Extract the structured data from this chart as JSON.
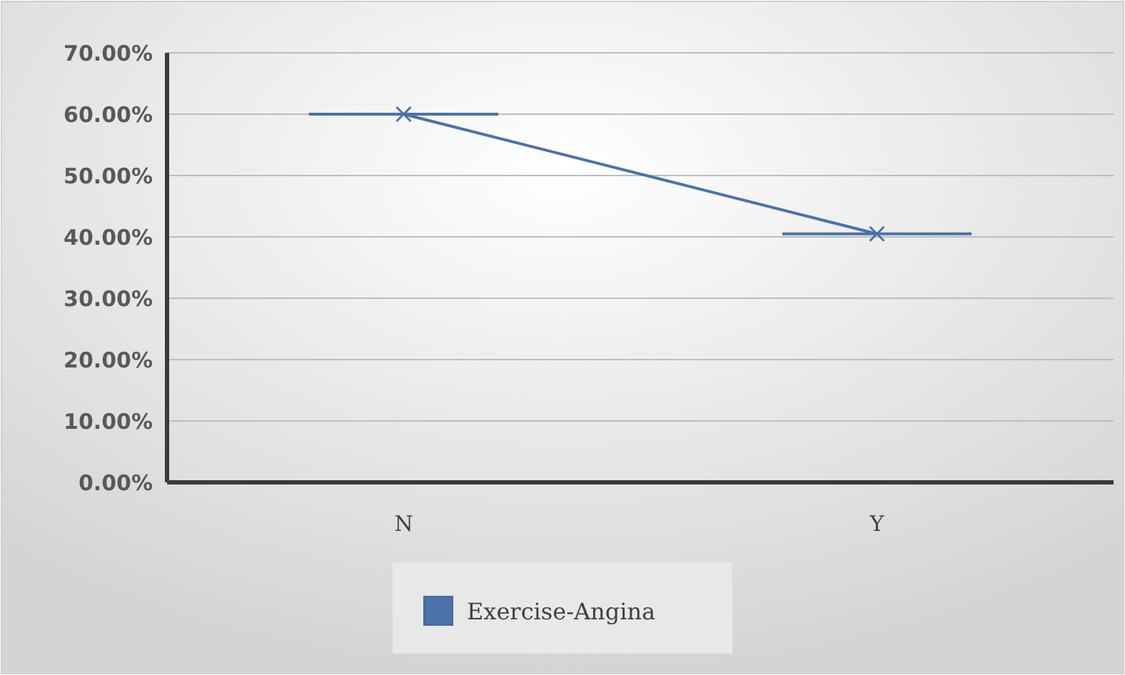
{
  "chart_data": {
    "type": "line",
    "categories": [
      "N",
      "Y"
    ],
    "series": [
      {
        "name": "Exercise-Angina",
        "color": "#4a72a8",
        "values": [
          60,
          40.5
        ]
      }
    ],
    "ylim": [
      0,
      70
    ],
    "yticks": [
      {
        "value": 0,
        "label": "0.00%"
      },
      {
        "value": 10,
        "label": "10.00%"
      },
      {
        "value": 20,
        "label": "20.00%"
      },
      {
        "value": 30,
        "label": "30.00%"
      },
      {
        "value": 40,
        "label": "40.00%"
      },
      {
        "value": 50,
        "label": "50.00%"
      },
      {
        "value": 60,
        "label": "60.00%"
      },
      {
        "value": 70,
        "label": "70.00%"
      }
    ],
    "grid": "y",
    "legend": "bottom",
    "marker": "cross",
    "line_style": "solid"
  }
}
